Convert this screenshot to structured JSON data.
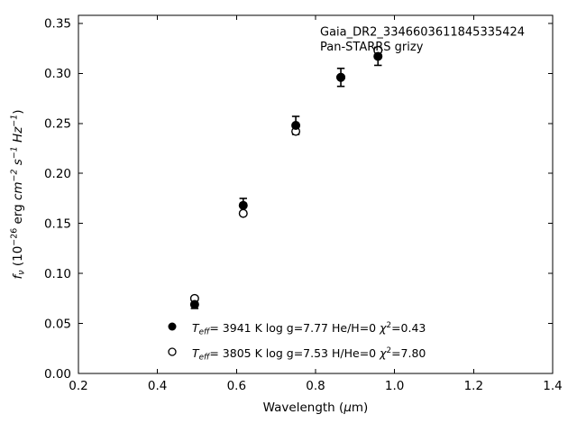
{
  "figure": {
    "background": "#ffffff",
    "foreground": "#000000"
  },
  "chart_data": {
    "type": "scatter",
    "title": "",
    "annotation_lines": [
      "Gaia_DR2_3346603611845335424",
      "Pan-STARRS grizy"
    ],
    "xlabel": "Wavelength (μm)",
    "ylabel": "f_ν (10⁻²⁶ erg cm⁻² s⁻¹ Hz⁻¹)",
    "xlabel_parts": [
      {
        "t": "Wavelength ("
      },
      {
        "t": "μ",
        "i": true
      },
      {
        "t": "m)"
      }
    ],
    "ylabel_parts": [
      {
        "t": "f",
        "i": true
      },
      {
        "t": "ν",
        "i": true,
        "p": "sub"
      },
      {
        "t": " (10"
      },
      {
        "t": "−26",
        "p": "sup"
      },
      {
        "t": " erg "
      },
      {
        "t": "cm",
        "i": true
      },
      {
        "t": "−2",
        "i": true,
        "p": "sup"
      },
      {
        "t": " "
      },
      {
        "t": "s",
        "i": true
      },
      {
        "t": "−1",
        "i": true,
        "p": "sup"
      },
      {
        "t": " "
      },
      {
        "t": "Hz",
        "i": true
      },
      {
        "t": "−1",
        "i": true,
        "p": "sup"
      },
      {
        "t": ")"
      }
    ],
    "xlim": [
      0.2,
      1.4
    ],
    "ylim": [
      0.0,
      0.358
    ],
    "grid": false,
    "ticks_direction": "in",
    "ticks_all_sides": true,
    "xticks": {
      "values": [
        0.2,
        0.4,
        0.6,
        0.8,
        1.0,
        1.2,
        1.4
      ],
      "labels": [
        "0.2",
        "0.4",
        "0.6",
        "0.8",
        "1.0",
        "1.2",
        "1.4"
      ]
    },
    "yticks": {
      "values": [
        0.0,
        0.05,
        0.1,
        0.15,
        0.2,
        0.25,
        0.3,
        0.35
      ],
      "labels": [
        "0.00",
        "0.05",
        "0.10",
        "0.15",
        "0.20",
        "0.25",
        "0.30",
        "0.35"
      ]
    },
    "series": [
      {
        "name": "T_eff=  3941 K  log g=7.77  He/H=0  χ²=0.43",
        "marker": "filled-circle",
        "color": "#000000",
        "x": [
          0.494,
          0.617,
          0.75,
          0.864,
          0.958
        ],
        "y": [
          0.069,
          0.168,
          0.248,
          0.296,
          0.317
        ],
        "yerr": [
          0.004,
          0.007,
          0.009,
          0.009,
          0.009
        ]
      },
      {
        "name": "T_eff=  3805 K  log g=7.53  H/He=0  χ²=7.80",
        "marker": "open-circle",
        "color": "#000000",
        "x": [
          0.494,
          0.617,
          0.75,
          0.864,
          0.958
        ],
        "y": [
          0.075,
          0.16,
          0.242,
          0.296,
          0.323
        ],
        "yerr": null
      }
    ],
    "legend": {
      "position": "lower-center",
      "frame": false,
      "rows": [
        {
          "marker": "filled-circle",
          "parts": [
            {
              "t": "T",
              "i": true
            },
            {
              "t": "eff",
              "i": true,
              "p": "sub"
            },
            {
              "t": "=  3941 K  log g=7.77  He/H=0  "
            },
            {
              "t": "χ",
              "i": true
            },
            {
              "t": "2",
              "p": "sup"
            },
            {
              "t": "=0.43"
            }
          ]
        },
        {
          "marker": "open-circle",
          "parts": [
            {
              "t": "T",
              "i": true
            },
            {
              "t": "eff",
              "i": true,
              "p": "sub"
            },
            {
              "t": "=  3805 K  log g=7.53  H/He=0  "
            },
            {
              "t": "χ",
              "i": true
            },
            {
              "t": "2",
              "p": "sup"
            },
            {
              "t": "=7.80"
            }
          ]
        }
      ]
    }
  }
}
